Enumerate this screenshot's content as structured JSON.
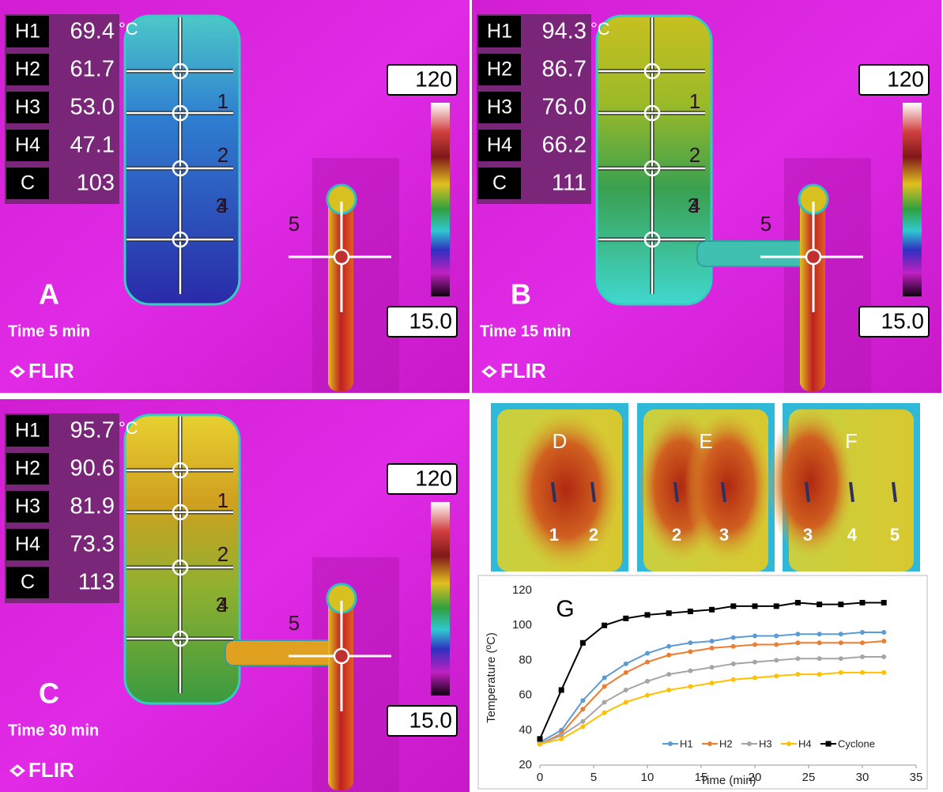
{
  "panels": [
    {
      "label": "A",
      "time": "Time 5 min",
      "unit": "°C",
      "scale_max": "120",
      "scale_min": "15.0",
      "logo": "FLIR",
      "readouts": [
        {
          "name": "H1",
          "value": "69.4"
        },
        {
          "name": "H2",
          "value": "61.7"
        },
        {
          "name": "H3",
          "value": "53.0"
        },
        {
          "name": "H4",
          "value": "47.1"
        },
        {
          "name": "C",
          "value": "103"
        }
      ],
      "markers": [
        "1",
        "2",
        "3",
        "4",
        "5"
      ]
    },
    {
      "label": "B",
      "time": "Time 15 min",
      "unit": "°C",
      "scale_max": "120",
      "scale_min": "15.0",
      "logo": "FLIR",
      "readouts": [
        {
          "name": "H1",
          "value": "94.3"
        },
        {
          "name": "H2",
          "value": "86.7"
        },
        {
          "name": "H3",
          "value": "76.0"
        },
        {
          "name": "H4",
          "value": "66.2"
        },
        {
          "name": "C",
          "value": "111"
        }
      ],
      "markers": [
        "1",
        "2",
        "3",
        "4",
        "5"
      ]
    },
    {
      "label": "C",
      "time": "Time 30 min",
      "unit": "°C",
      "scale_max": "120",
      "scale_min": "15.0",
      "logo": "FLIR",
      "readouts": [
        {
          "name": "H1",
          "value": "95.7"
        },
        {
          "name": "H2",
          "value": "90.6"
        },
        {
          "name": "H3",
          "value": "81.9"
        },
        {
          "name": "H4",
          "value": "73.3"
        },
        {
          "name": "C",
          "value": "113"
        }
      ],
      "markers": [
        "1",
        "2",
        "3",
        "4",
        "5"
      ]
    }
  ],
  "closeups": [
    {
      "label": "D",
      "numbers": [
        "1",
        "2"
      ]
    },
    {
      "label": "E",
      "numbers": [
        "2",
        "3"
      ]
    },
    {
      "label": "F",
      "numbers": [
        "3",
        "4",
        "5"
      ]
    }
  ],
  "chart_data": {
    "type": "line",
    "label": "G",
    "xlabel": "Time (min)",
    "ylabel": "Temperature (ºC)",
    "x": [
      0,
      2,
      4,
      6,
      8,
      10,
      12,
      14,
      16,
      18,
      20,
      22,
      24,
      26,
      28,
      30,
      32
    ],
    "series": [
      {
        "name": "H1",
        "color": "#5b9bd5",
        "marker": "circle",
        "values": [
          33,
          40,
          57,
          70,
          78,
          84,
          88,
          90,
          91,
          93,
          94,
          94,
          95,
          95,
          95,
          96,
          96
        ]
      },
      {
        "name": "H2",
        "color": "#ed7d31",
        "marker": "circle",
        "values": [
          32,
          38,
          52,
          65,
          73,
          79,
          83,
          85,
          87,
          88,
          89,
          89,
          90,
          90,
          90,
          90,
          91
        ]
      },
      {
        "name": "H3",
        "color": "#a5a5a5",
        "marker": "circle",
        "values": [
          32,
          37,
          45,
          56,
          63,
          68,
          72,
          74,
          76,
          78,
          79,
          80,
          81,
          81,
          81,
          82,
          82
        ]
      },
      {
        "name": "H4",
        "color": "#ffc000",
        "marker": "circle",
        "values": [
          32,
          35,
          42,
          50,
          56,
          60,
          63,
          65,
          67,
          69,
          70,
          71,
          72,
          72,
          73,
          73,
          73
        ]
      },
      {
        "name": "Cyclone",
        "color": "#000000",
        "marker": "square",
        "values": [
          35,
          63,
          90,
          100,
          104,
          106,
          107,
          108,
          109,
          111,
          111,
          111,
          113,
          112,
          112,
          113,
          113
        ]
      }
    ],
    "xlim": [
      0,
      35
    ],
    "ylim": [
      20,
      120
    ],
    "xticks": [
      0,
      5,
      10,
      15,
      20,
      25,
      30,
      35
    ],
    "yticks": [
      20,
      40,
      60,
      80,
      100,
      120
    ],
    "grid": false,
    "legend": "lower right"
  }
}
